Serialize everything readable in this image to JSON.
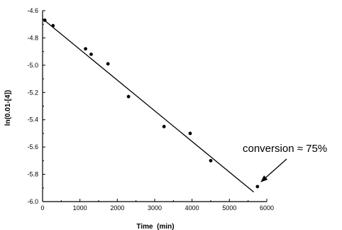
{
  "chart_data": {
    "type": "scatter",
    "xlabel": "Time  (min)",
    "ylabel": "ln(0.01-[4])",
    "xlim": [
      0,
      6000
    ],
    "ylim": [
      -6.0,
      -4.6
    ],
    "x_ticks": [
      0,
      1000,
      2000,
      3000,
      4000,
      5000,
      6000
    ],
    "y_ticks": [
      -6.0,
      -5.8,
      -5.6,
      -5.4,
      -5.2,
      -5.0,
      -4.8,
      -4.6
    ],
    "x_tick_labels": [
      "0",
      "1000",
      "2000",
      "3000",
      "4000",
      "5000",
      "6000"
    ],
    "y_tick_labels": [
      "-6.0",
      "-5.8",
      "-5.6",
      "-5.4",
      "-5.2",
      "-5.0",
      "-4.8",
      "-4.6"
    ],
    "points": [
      {
        "x": 60,
        "y": -4.67
      },
      {
        "x": 280,
        "y": -4.71
      },
      {
        "x": 1150,
        "y": -4.88
      },
      {
        "x": 1300,
        "y": -4.92
      },
      {
        "x": 1750,
        "y": -4.99
      },
      {
        "x": 2300,
        "y": -5.23
      },
      {
        "x": 3250,
        "y": -5.45
      },
      {
        "x": 3950,
        "y": -5.5
      },
      {
        "x": 4500,
        "y": -5.7
      },
      {
        "x": 5750,
        "y": -5.89
      }
    ],
    "fit_line": {
      "x": [
        0,
        5650
      ],
      "y": [
        -4.66,
        -5.93
      ]
    },
    "annotation": {
      "text": "conversion ≈ 75%",
      "x": 5750,
      "y": -5.87
    },
    "grid": false,
    "legend": "none"
  }
}
